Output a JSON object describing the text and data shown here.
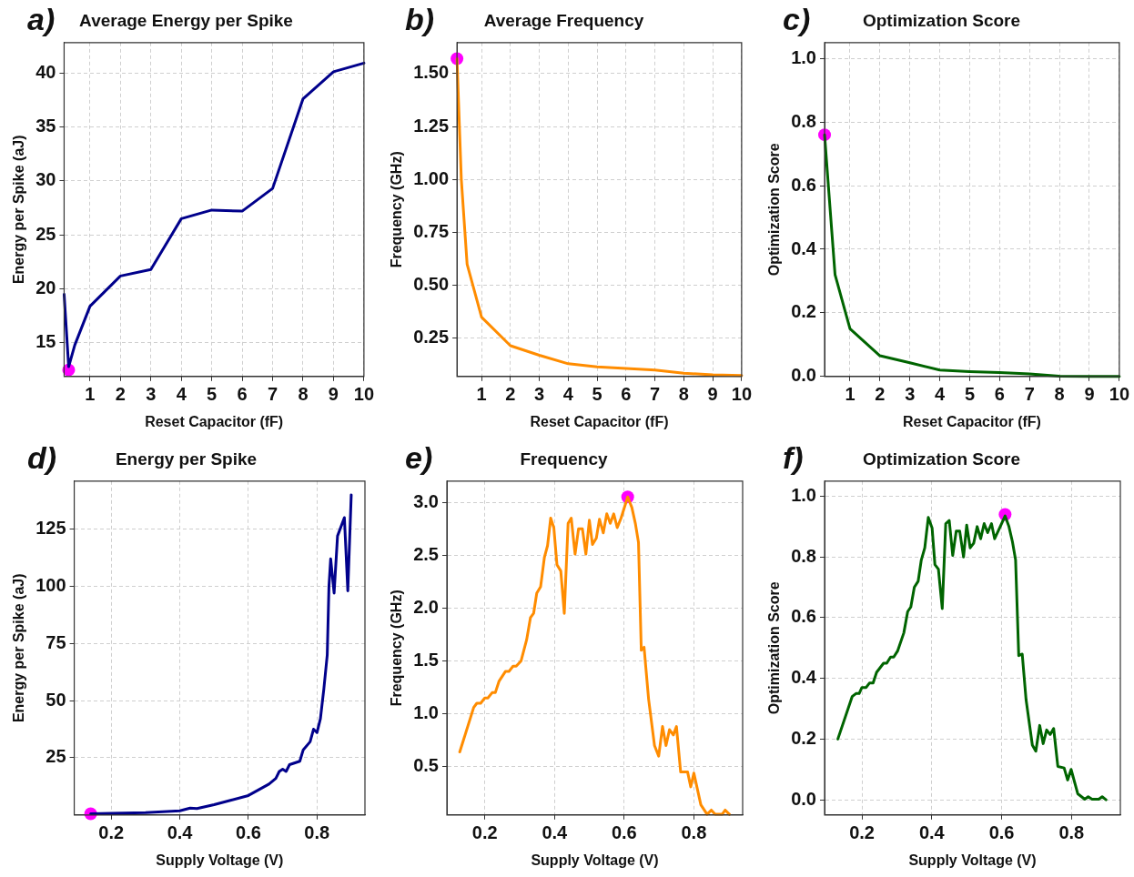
{
  "chart_data": [
    {
      "type": "line",
      "title": "Average Energy per Spike",
      "xlabel": "Reset Capacitor (fF)",
      "ylabel": "Energy per Spike (aJ)",
      "annotations": [
        "a)"
      ],
      "xlim": [
        0.15,
        10
      ],
      "xticks": [
        1,
        2,
        3,
        4,
        5,
        6,
        7,
        8,
        9,
        10
      ],
      "ylim": [
        11.9,
        42.8
      ],
      "yticks": [
        15,
        20,
        25,
        30,
        35,
        40
      ],
      "grid": true,
      "legend": false,
      "line_style": "solid",
      "series": [
        {
          "type": "line",
          "marker": "none",
          "color": "#00008b",
          "x": [
            0.15,
            0.3,
            0.5,
            1,
            2,
            3,
            4,
            5,
            6,
            7,
            8,
            9,
            10
          ],
          "values": [
            19.5,
            12.8,
            14.8,
            18.4,
            21.2,
            21.8,
            26.5,
            27.3,
            27.2,
            29.3,
            37.6,
            40.1,
            40.9
          ]
        },
        {
          "type": "scatter",
          "marker": "circle",
          "color": "#ff00ff",
          "x": [
            0.3
          ],
          "values": [
            12.5
          ]
        }
      ]
    },
    {
      "type": "line",
      "title": "Average Frequency",
      "xlabel": "Reset Capacitor (fF)",
      "ylabel": "Frequency (GHz)",
      "annotations": [
        "b)"
      ],
      "xlim": [
        0.15,
        10
      ],
      "xticks": [
        1,
        2,
        3,
        4,
        5,
        6,
        7,
        8,
        9,
        10
      ],
      "ylim": [
        0.07,
        1.646
      ],
      "yticks": [
        {
          "value": 0.25,
          "label": "0.25"
        },
        {
          "value": 0.5,
          "label": "0.50"
        },
        {
          "value": 0.75,
          "label": "0.75"
        },
        {
          "value": 1,
          "label": "1.00"
        },
        {
          "value": 1.25,
          "label": "1.25"
        },
        {
          "value": 1.5,
          "label": "1.50"
        }
      ],
      "grid": true,
      "legend": false,
      "line_style": "solid",
      "series": [
        {
          "type": "line",
          "marker": "none",
          "color": "#ff8c00",
          "x": [
            0.15,
            0.3,
            0.5,
            1,
            2,
            3,
            4,
            5,
            6,
            7,
            8,
            9,
            10
          ],
          "values": [
            1.57,
            1.0,
            0.6,
            0.35,
            0.215,
            0.17,
            0.13,
            0.115,
            0.108,
            0.1,
            0.085,
            0.078,
            0.075
          ]
        },
        {
          "type": "scatter",
          "marker": "circle",
          "color": "#ff00ff",
          "x": [
            0.15
          ],
          "values": [
            1.57
          ]
        }
      ]
    },
    {
      "type": "line",
      "title": "Optimization Score",
      "xlabel": "Reset Capacitor (fF)",
      "ylabel": "Optimization Score",
      "annotations": [
        "c)"
      ],
      "xlim": [
        0.15,
        10
      ],
      "xticks": [
        1,
        2,
        3,
        4,
        5,
        6,
        7,
        8,
        9,
        10
      ],
      "ylim": [
        0,
        1.05
      ],
      "yticks": [
        {
          "value": 0,
          "label": "0.0"
        },
        {
          "value": 0.2,
          "label": "0.2"
        },
        {
          "value": 0.4,
          "label": "0.4"
        },
        {
          "value": 0.6,
          "label": "0.6"
        },
        {
          "value": 0.8,
          "label": "0.8"
        },
        {
          "value": 1,
          "label": "1.0"
        }
      ],
      "grid": true,
      "legend": false,
      "line_style": "solid",
      "series": [
        {
          "type": "line",
          "marker": "none",
          "color": "#006400",
          "x": [
            0.15,
            0.5,
            1,
            2,
            3,
            4,
            5,
            6,
            7,
            8,
            9,
            10
          ],
          "values": [
            0.76,
            0.32,
            0.15,
            0.065,
            0.043,
            0.02,
            0.015,
            0.012,
            0.008,
            0.001,
            0,
            0
          ]
        },
        {
          "type": "scatter",
          "marker": "circle",
          "color": "#ff00ff",
          "x": [
            0.15
          ],
          "values": [
            0.76
          ]
        }
      ]
    },
    {
      "type": "line",
      "title": "Energy per Spike",
      "xlabel": "Supply Voltage (V)",
      "ylabel": "Energy per Spike (aJ)",
      "annotations": [
        "d)"
      ],
      "xlim": [
        0.092,
        0.94
      ],
      "xticks": [
        0.2,
        0.4,
        0.6,
        0.8
      ],
      "ylim": [
        0,
        146
      ],
      "yticks": [
        25,
        50,
        75,
        100,
        125
      ],
      "grid": true,
      "legend": false,
      "line_style": "solid",
      "series": [
        {
          "type": "line",
          "marker": "none",
          "color": "#00008b",
          "x": [
            0.14,
            0.2,
            0.3,
            0.4,
            0.43,
            0.45,
            0.5,
            0.55,
            0.6,
            0.63,
            0.66,
            0.68,
            0.69,
            0.7,
            0.71,
            0.72,
            0.74,
            0.75,
            0.76,
            0.78,
            0.79,
            0.8,
            0.81,
            0.82,
            0.83,
            0.835,
            0.84,
            0.85,
            0.86,
            0.88,
            0.89,
            0.9
          ],
          "values": [
            0.5,
            0.7,
            1.0,
            1.8,
            3,
            2.8,
            4.5,
            6.5,
            8.5,
            11,
            13.5,
            16,
            19,
            20,
            19,
            22,
            23,
            23.5,
            28.5,
            32,
            37.5,
            36,
            42,
            55,
            70,
            100,
            112,
            97,
            122,
            130,
            98,
            140
          ]
        },
        {
          "type": "scatter",
          "marker": "circle",
          "color": "#ff00ff",
          "x": [
            0.14
          ],
          "values": [
            0.5
          ]
        }
      ]
    },
    {
      "type": "line",
      "title": "Frequency",
      "xlabel": "Supply Voltage (V)",
      "ylabel": "Frequency (GHz)",
      "annotations": [
        "e)"
      ],
      "xlim": [
        0.091,
        0.94
      ],
      "xticks": [
        0.2,
        0.4,
        0.6,
        0.8
      ],
      "ylim": [
        0.044,
        3.2
      ],
      "yticks": [
        0.5,
        {
          "value": 1,
          "label": "1.0"
        },
        1.5,
        {
          "value": 2,
          "label": "2.0"
        },
        2.5,
        {
          "value": 3,
          "label": "3.0"
        }
      ],
      "grid": true,
      "legend": false,
      "line_style": "solid",
      "series": [
        {
          "type": "line",
          "marker": "none",
          "color": "#ff8c00",
          "x": [
            0.128,
            0.168,
            0.177,
            0.188,
            0.2,
            0.209,
            0.221,
            0.23,
            0.241,
            0.259,
            0.269,
            0.281,
            0.29,
            0.304,
            0.32,
            0.331,
            0.34,
            0.349,
            0.36,
            0.371,
            0.38,
            0.389,
            0.398,
            0.407,
            0.418,
            0.428,
            0.439,
            0.448,
            0.459,
            0.469,
            0.48,
            0.49,
            0.5,
            0.509,
            0.52,
            0.529,
            0.54,
            0.55,
            0.56,
            0.57,
            0.58,
            0.591,
            0.61,
            0.622,
            0.632,
            0.641,
            0.649,
            0.657,
            0.67,
            0.687,
            0.699,
            0.71,
            0.72,
            0.73,
            0.741,
            0.75,
            0.762,
            0.782,
            0.791,
            0.8,
            0.82,
            0.838,
            0.85,
            0.861,
            0.881,
            0.89,
            0.902
          ],
          "values": [
            0.64,
            1.06,
            1.1,
            1.1,
            1.15,
            1.15,
            1.2,
            1.2,
            1.31,
            1.4,
            1.4,
            1.45,
            1.45,
            1.5,
            1.7,
            1.91,
            1.95,
            2.14,
            2.2,
            2.48,
            2.59,
            2.85,
            2.76,
            2.41,
            2.35,
            1.95,
            2.8,
            2.85,
            2.51,
            2.75,
            2.75,
            2.51,
            2.83,
            2.6,
            2.66,
            2.84,
            2.71,
            2.89,
            2.8,
            2.89,
            2.76,
            2.85,
            3.05,
            2.95,
            2.8,
            2.62,
            1.6,
            1.63,
            1.14,
            0.7,
            0.6,
            0.88,
            0.7,
            0.85,
            0.8,
            0.88,
            0.45,
            0.45,
            0.31,
            0.44,
            0.14,
            0.05,
            0.09,
            0.05,
            0.05,
            0.09,
            0.05
          ]
        },
        {
          "type": "scatter",
          "marker": "circle",
          "color": "#ff00ff",
          "x": [
            0.61
          ],
          "values": [
            3.05
          ]
        }
      ]
    },
    {
      "type": "line",
      "title": "Optimization Score",
      "xlabel": "Supply Voltage (V)",
      "ylabel": "Optimization Score",
      "annotations": [
        "f)"
      ],
      "xlim": [
        0.093,
        0.94
      ],
      "xticks": [
        0.2,
        0.4,
        0.6,
        0.8
      ],
      "ylim": [
        -0.05,
        1.05
      ],
      "yticks": [
        {
          "value": 0,
          "label": "0.0"
        },
        {
          "value": 0.2,
          "label": "0.2"
        },
        {
          "value": 0.4,
          "label": "0.4"
        },
        {
          "value": 0.6,
          "label": "0.6"
        },
        {
          "value": 0.8,
          "label": "0.8"
        },
        {
          "value": 1,
          "label": "1.0"
        }
      ],
      "grid": true,
      "legend": false,
      "line_style": "solid",
      "series": [
        {
          "type": "line",
          "marker": "none",
          "color": "#006400",
          "x": [
            0.131,
            0.172,
            0.183,
            0.192,
            0.2,
            0.212,
            0.222,
            0.232,
            0.242,
            0.262,
            0.271,
            0.282,
            0.291,
            0.302,
            0.32,
            0.331,
            0.34,
            0.35,
            0.361,
            0.37,
            0.38,
            0.39,
            0.401,
            0.409,
            0.419,
            0.43,
            0.44,
            0.45,
            0.46,
            0.47,
            0.48,
            0.491,
            0.5,
            0.51,
            0.52,
            0.53,
            0.54,
            0.55,
            0.56,
            0.571,
            0.58,
            0.59,
            0.61,
            0.621,
            0.631,
            0.64,
            0.649,
            0.659,
            0.67,
            0.688,
            0.698,
            0.709,
            0.719,
            0.729,
            0.739,
            0.749,
            0.761,
            0.779,
            0.789,
            0.799,
            0.818,
            0.838,
            0.848,
            0.859,
            0.878,
            0.888,
            0.899
          ],
          "values": [
            0.2,
            0.34,
            0.35,
            0.35,
            0.37,
            0.37,
            0.385,
            0.385,
            0.42,
            0.45,
            0.45,
            0.47,
            0.47,
            0.49,
            0.55,
            0.62,
            0.635,
            0.7,
            0.72,
            0.79,
            0.83,
            0.93,
            0.895,
            0.775,
            0.76,
            0.63,
            0.91,
            0.92,
            0.805,
            0.885,
            0.885,
            0.8,
            0.905,
            0.83,
            0.845,
            0.9,
            0.86,
            0.91,
            0.88,
            0.91,
            0.86,
            0.885,
            0.935,
            0.9,
            0.85,
            0.79,
            0.475,
            0.48,
            0.33,
            0.18,
            0.16,
            0.245,
            0.185,
            0.23,
            0.215,
            0.235,
            0.11,
            0.105,
            0.065,
            0.1,
            0.02,
            0.002,
            0.01,
            0.002,
            0.002,
            0.01,
            0
          ]
        },
        {
          "type": "scatter",
          "marker": "circle",
          "color": "#ff00ff",
          "x": [
            0.61
          ],
          "values": [
            0.94
          ]
        }
      ]
    }
  ]
}
